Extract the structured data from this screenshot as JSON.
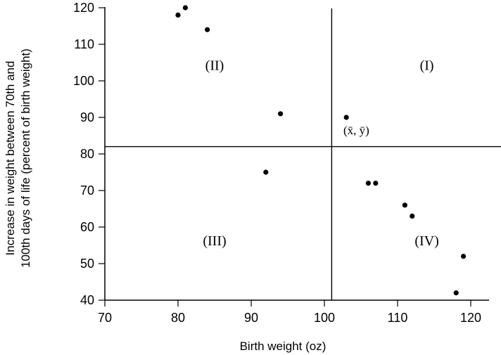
{
  "chart_data": {
    "type": "scatter",
    "xlabel": "Birth weight (oz)",
    "ylabel_lines": [
      "Increase in weight between 70th and",
      "100th days of life (percent of birth weight)"
    ],
    "xlim": [
      70,
      125
    ],
    "ylim": [
      40,
      120
    ],
    "x_ticks": [
      70,
      80,
      90,
      100,
      110,
      120
    ],
    "y_ticks": [
      40,
      50,
      60,
      70,
      80,
      90,
      100,
      110,
      120
    ],
    "x_tick_labels": [
      "70",
      "80",
      "90",
      "100",
      "110",
      "120"
    ],
    "y_tick_labels": [
      "40",
      "50",
      "60",
      "70",
      "80",
      "90",
      "100",
      "110",
      "120"
    ],
    "grid": false,
    "points": [
      {
        "x": 80,
        "y": 118
      },
      {
        "x": 81,
        "y": 120
      },
      {
        "x": 84,
        "y": 114
      },
      {
        "x": 94,
        "y": 91
      },
      {
        "x": 92,
        "y": 75
      },
      {
        "x": 103,
        "y": 90
      },
      {
        "x": 106,
        "y": 72
      },
      {
        "x": 107,
        "y": 72
      },
      {
        "x": 111,
        "y": 66
      },
      {
        "x": 112,
        "y": 63
      },
      {
        "x": 119,
        "y": 52
      },
      {
        "x": 118,
        "y": 42
      }
    ],
    "mean": {
      "x": 101,
      "y": 82
    },
    "mean_label": "(x̄, ȳ)",
    "quadrants": [
      {
        "label": "(I)",
        "x": 114,
        "y": 103
      },
      {
        "label": "(II)",
        "x": 85,
        "y": 103
      },
      {
        "label": "(III)",
        "x": 85,
        "y": 55
      },
      {
        "label": "(IV)",
        "x": 114,
        "y": 55
      }
    ]
  }
}
